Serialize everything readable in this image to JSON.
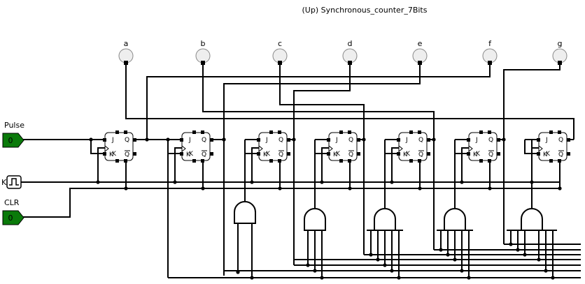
{
  "title": "(Up) Synchronous_counter_7Bits",
  "inputs": {
    "pulse": {
      "label": "Pulse",
      "value": "0"
    },
    "clock": {
      "label": "K"
    },
    "clear": {
      "label": "CLR",
      "value": "0"
    }
  },
  "outputs": [
    "a",
    "b",
    "c",
    "d",
    "e",
    "f",
    "g"
  ],
  "flipflop_pins": {
    "j": "J",
    "k": "K",
    "q": "Q",
    "qbar": "Q",
    "clk": "K"
  },
  "colors": {
    "input_fill": "#0a7a0a",
    "input_text": "#ffffff",
    "led_fill": "#eeeeee",
    "wire": "#000000"
  }
}
